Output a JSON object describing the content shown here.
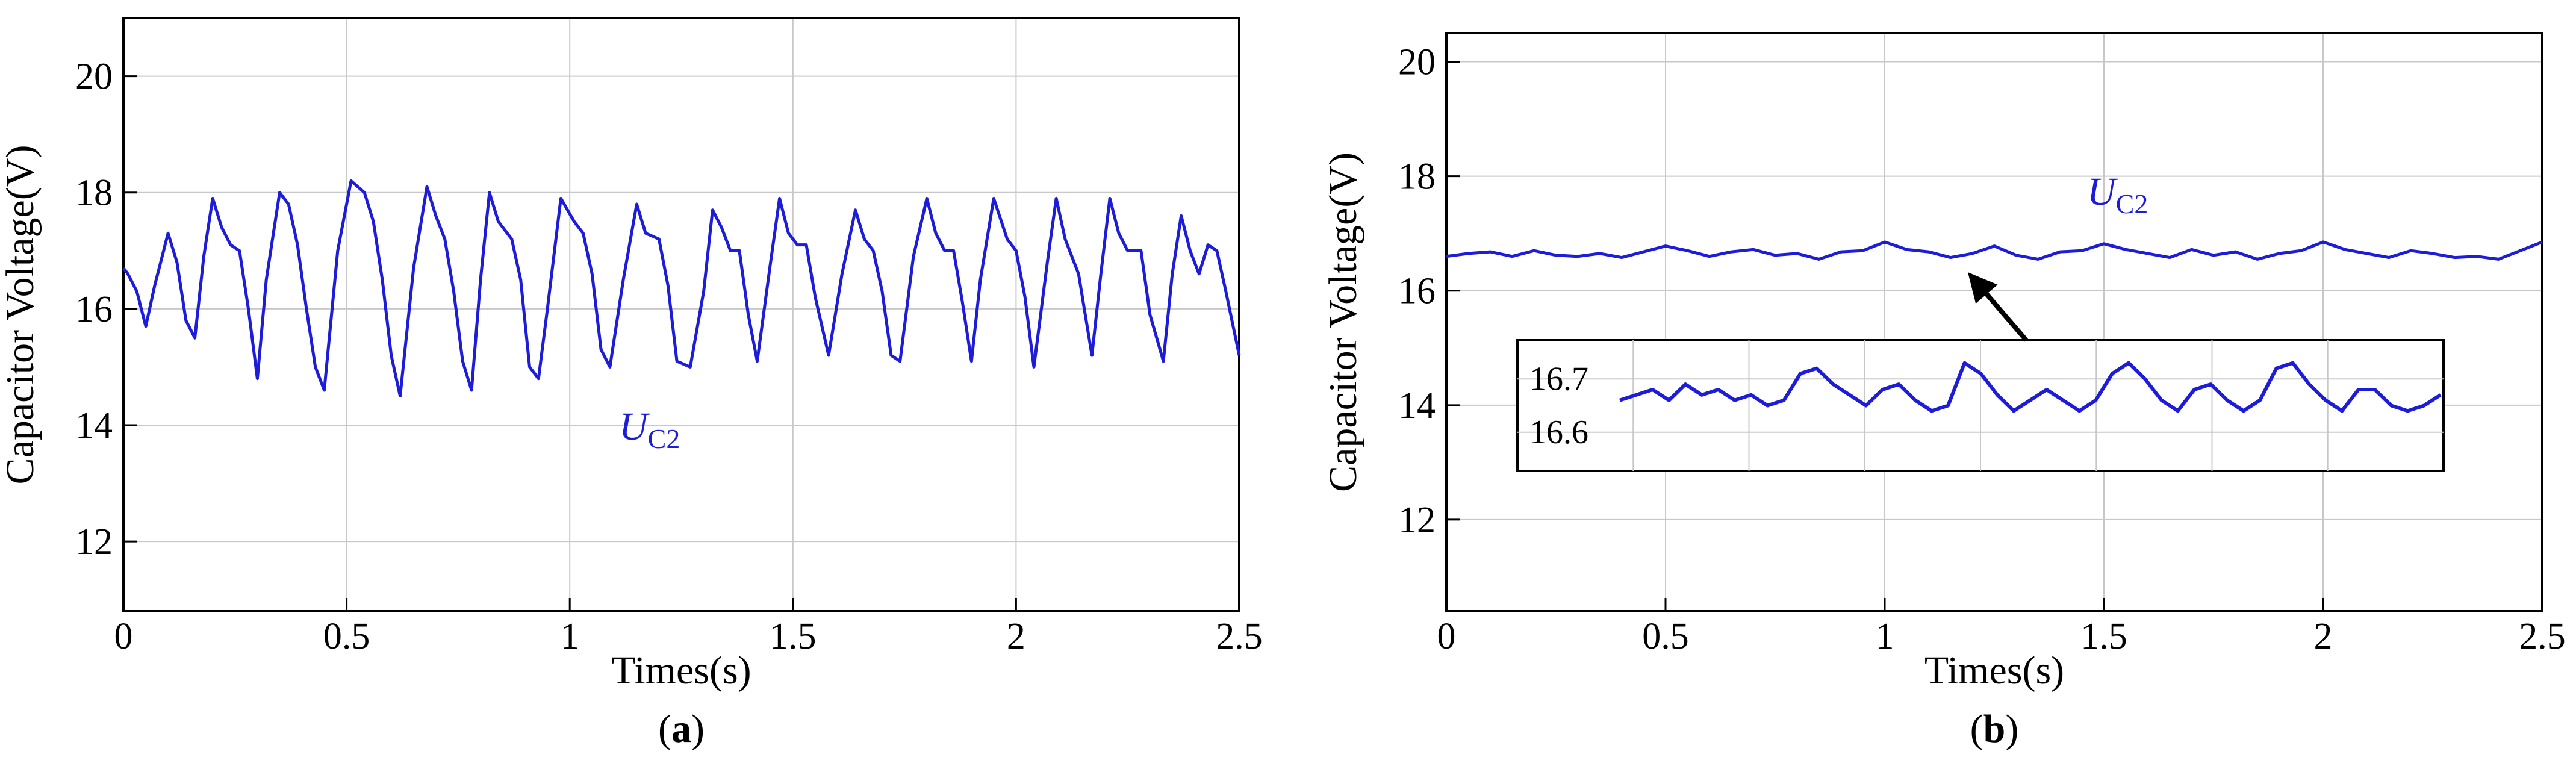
{
  "chart_data": [
    {
      "type": "line",
      "panel_label": "a",
      "xlabel": "Times(s)",
      "ylabel": "Capacitor Voltage(V)",
      "xlim": [
        0,
        2.5
      ],
      "ylim": [
        10.8,
        21
      ],
      "x_ticks": [
        "0",
        "0.5",
        "1",
        "1.5",
        "2",
        "2.5"
      ],
      "y_ticks": [
        "12",
        "14",
        "16",
        "18",
        "20"
      ],
      "grid": true,
      "series_label": {
        "main": "U",
        "sub": "C2"
      },
      "line_color": "#1c1cd9",
      "series": [
        {
          "x": [
            0,
            0.01,
            0.03,
            0.05,
            0.07,
            0.1,
            0.12,
            0.14,
            0.16,
            0.18,
            0.2,
            0.22,
            0.24,
            0.26,
            0.28,
            0.3,
            0.32,
            0.35,
            0.37,
            0.39,
            0.41,
            0.43,
            0.45,
            0.48,
            0.51,
            0.54,
            0.56,
            0.58,
            0.6,
            0.62,
            0.65,
            0.68,
            0.7,
            0.72,
            0.74,
            0.76,
            0.78,
            0.8,
            0.82,
            0.84,
            0.87,
            0.89,
            0.91,
            0.93,
            0.95,
            0.98,
            1.01,
            1.03,
            1.05,
            1.07,
            1.09,
            1.12,
            1.15,
            1.17,
            1.2,
            1.22,
            1.24,
            1.27,
            1.3,
            1.32,
            1.34,
            1.36,
            1.38,
            1.4,
            1.42,
            1.45,
            1.47,
            1.49,
            1.51,
            1.53,
            1.55,
            1.58,
            1.61,
            1.64,
            1.66,
            1.68,
            1.7,
            1.72,
            1.74,
            1.77,
            1.8,
            1.82,
            1.84,
            1.86,
            1.88,
            1.9,
            1.92,
            1.95,
            1.98,
            2.0,
            2.02,
            2.04,
            2.07,
            2.09,
            2.11,
            2.14,
            2.17,
            2.19,
            2.21,
            2.23,
            2.25,
            2.28,
            2.3,
            2.33,
            2.35,
            2.37,
            2.39,
            2.41,
            2.43,
            2.45,
            2.47,
            2.5
          ],
          "y": [
            16.7,
            16.6,
            16.3,
            15.7,
            16.4,
            17.3,
            16.8,
            15.8,
            15.5,
            16.9,
            17.9,
            17.4,
            17.1,
            17.0,
            16.0,
            14.8,
            16.5,
            18.0,
            17.8,
            17.1,
            16.0,
            15.0,
            14.6,
            17.0,
            18.2,
            18.0,
            17.5,
            16.5,
            15.2,
            14.5,
            16.7,
            18.1,
            17.6,
            17.2,
            16.3,
            15.1,
            14.6,
            16.5,
            18.0,
            17.5,
            17.2,
            16.5,
            15.0,
            14.8,
            16.0,
            17.9,
            17.5,
            17.3,
            16.6,
            15.3,
            15.0,
            16.5,
            17.8,
            17.3,
            17.2,
            16.4,
            15.1,
            15.0,
            16.3,
            17.7,
            17.4,
            17.0,
            17.0,
            15.9,
            15.1,
            16.8,
            17.9,
            17.3,
            17.1,
            17.1,
            16.2,
            15.2,
            16.6,
            17.7,
            17.2,
            17.0,
            16.3,
            15.2,
            15.1,
            16.9,
            17.9,
            17.3,
            17.0,
            17.0,
            16.1,
            15.1,
            16.5,
            17.9,
            17.2,
            17.0,
            16.2,
            15.0,
            16.8,
            17.9,
            17.2,
            16.6,
            15.2,
            16.6,
            17.9,
            17.3,
            17.0,
            17.0,
            15.9,
            15.1,
            16.6,
            17.6,
            17.0,
            16.6,
            17.1,
            17.0,
            16.3,
            15.2
          ]
        }
      ]
    },
    {
      "type": "line",
      "panel_label": "b",
      "xlabel": "Times(s)",
      "ylabel": "Capacitor Voltage(V)",
      "xlim": [
        0,
        2.5
      ],
      "ylim": [
        10.4,
        20.5
      ],
      "x_ticks": [
        "0",
        "0.5",
        "1",
        "1.5",
        "2",
        "2.5"
      ],
      "y_ticks": [
        "12",
        "14",
        "16",
        "18",
        "20"
      ],
      "grid": true,
      "series_label": {
        "main": "U",
        "sub": "C2"
      },
      "line_color": "#1c1cd9",
      "series": [
        {
          "x": [
            0,
            0.05,
            0.1,
            0.15,
            0.2,
            0.25,
            0.3,
            0.35,
            0.4,
            0.45,
            0.5,
            0.55,
            0.6,
            0.65,
            0.7,
            0.75,
            0.8,
            0.85,
            0.9,
            0.95,
            1.0,
            1.05,
            1.1,
            1.15,
            1.2,
            1.25,
            1.3,
            1.35,
            1.4,
            1.45,
            1.5,
            1.55,
            1.6,
            1.65,
            1.7,
            1.75,
            1.8,
            1.85,
            1.9,
            1.95,
            2.0,
            2.05,
            2.1,
            2.15,
            2.2,
            2.25,
            2.3,
            2.35,
            2.4,
            2.45,
            2.5
          ],
          "y": [
            16.6,
            16.65,
            16.68,
            16.6,
            16.7,
            16.62,
            16.6,
            16.65,
            16.58,
            16.68,
            16.78,
            16.7,
            16.6,
            16.68,
            16.72,
            16.62,
            16.65,
            16.55,
            16.68,
            16.7,
            16.85,
            16.72,
            16.68,
            16.58,
            16.65,
            16.78,
            16.62,
            16.55,
            16.68,
            16.7,
            16.82,
            16.72,
            16.65,
            16.58,
            16.72,
            16.62,
            16.68,
            16.55,
            16.65,
            16.7,
            16.85,
            16.72,
            16.65,
            16.58,
            16.7,
            16.65,
            16.58,
            16.6,
            16.55,
            16.7,
            16.85
          ]
        }
      ],
      "inset": {
        "y_ticks": [
          "16.7",
          "16.6"
        ],
        "ylim": [
          16.55,
          16.75
        ],
        "series": [
          {
            "x": [
              0,
              0.02,
              0.04,
              0.06,
              0.08,
              0.1,
              0.12,
              0.14,
              0.16,
              0.18,
              0.2,
              0.22,
              0.24,
              0.26,
              0.28,
              0.3,
              0.32,
              0.34,
              0.36,
              0.38,
              0.4,
              0.42,
              0.44,
              0.46,
              0.48,
              0.5,
              0.52,
              0.54,
              0.56,
              0.58,
              0.6,
              0.62,
              0.64,
              0.66,
              0.68,
              0.7,
              0.72,
              0.74,
              0.76,
              0.78,
              0.8,
              0.82,
              0.84,
              0.86,
              0.88,
              0.9,
              0.92,
              0.94,
              0.96,
              0.98,
              1.0
            ],
            "y": [
              16.66,
              16.67,
              16.68,
              16.66,
              16.69,
              16.67,
              16.68,
              16.66,
              16.67,
              16.65,
              16.66,
              16.71,
              16.72,
              16.69,
              16.67,
              16.65,
              16.68,
              16.69,
              16.66,
              16.64,
              16.65,
              16.73,
              16.71,
              16.67,
              16.64,
              16.66,
              16.68,
              16.66,
              16.64,
              16.66,
              16.71,
              16.73,
              16.7,
              16.66,
              16.64,
              16.68,
              16.69,
              16.66,
              16.64,
              16.66,
              16.72,
              16.73,
              16.69,
              16.66,
              16.64,
              16.68,
              16.68,
              16.65,
              16.64,
              16.65,
              16.67
            ]
          }
        ]
      }
    }
  ]
}
